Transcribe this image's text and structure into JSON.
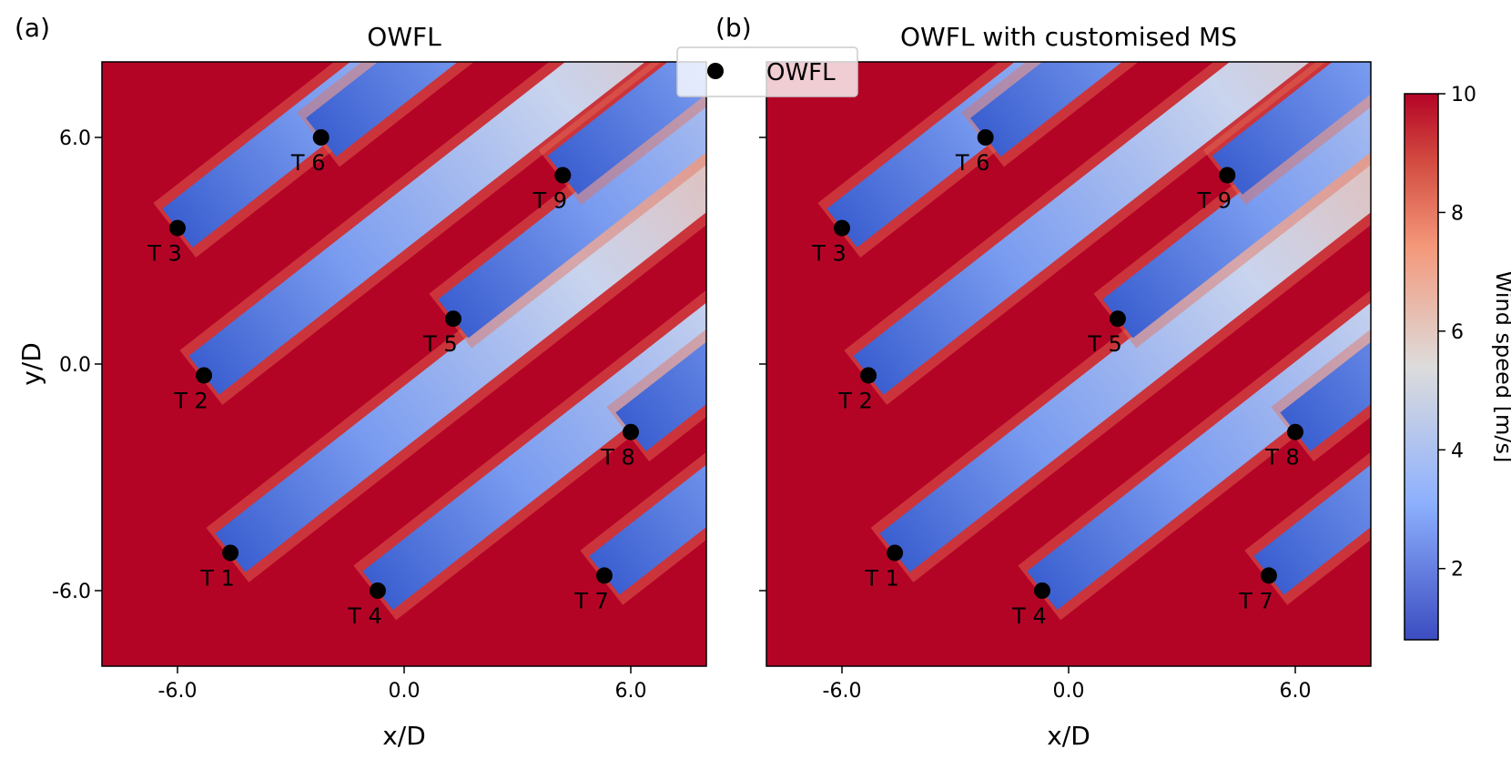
{
  "panels": [
    {
      "tag": "(a)",
      "title": "OWFL",
      "x_ticks": [
        "-6.0",
        "0.0",
        "6.0"
      ],
      "y_ticks": [
        "6.0",
        "0.0",
        "-6.0"
      ],
      "xlabel": "x/D",
      "ylabel": "y/D"
    },
    {
      "tag": "(b)",
      "title": "OWFL with customised MS",
      "x_ticks": [
        "-6.0",
        "0.0",
        "6.0"
      ],
      "xlabel": "x/D"
    }
  ],
  "legend": {
    "label": "OWFL",
    "position": "top-center"
  },
  "colorbar": {
    "label": "Wind speed [m/s]",
    "ticks": [
      "10",
      "8",
      "6",
      "4",
      "2"
    ],
    "tick_values": [
      10,
      8,
      6,
      4,
      2
    ],
    "range": [
      0.8,
      10
    ],
    "colormap": "coolwarm"
  },
  "chart_data": [
    {
      "type": "heatmap",
      "title": "OWFL",
      "xlabel": "x/D",
      "ylabel": "y/D",
      "xlim": [
        -8,
        8
      ],
      "ylim": [
        -8,
        8
      ],
      "grid": false,
      "wind_direction_deg": 38,
      "turbines": [
        {
          "label": "T 1",
          "x": -4.6,
          "y": -5.0
        },
        {
          "label": "T 2",
          "x": -5.3,
          "y": -0.3
        },
        {
          "label": "T 3",
          "x": -6.0,
          "y": 3.6
        },
        {
          "label": "T 4",
          "x": -0.7,
          "y": -6.0
        },
        {
          "label": "T 5",
          "x": 1.3,
          "y": 1.2
        },
        {
          "label": "T 6",
          "x": -2.2,
          "y": 6.0
        },
        {
          "label": "T 7",
          "x": 5.3,
          "y": -5.6
        },
        {
          "label": "T 8",
          "x": 6.0,
          "y": -1.8
        },
        {
          "label": "T 9",
          "x": 4.2,
          "y": 5.0
        }
      ]
    },
    {
      "type": "heatmap",
      "title": "OWFL with customised MS",
      "xlabel": "x/D",
      "ylabel": "",
      "xlim": [
        -8,
        8
      ],
      "ylim": [
        -8,
        8
      ],
      "grid": false,
      "wind_direction_deg": 38,
      "turbines": [
        {
          "label": "T 1",
          "x": -4.6,
          "y": -5.0
        },
        {
          "label": "T 2",
          "x": -5.3,
          "y": -0.3
        },
        {
          "label": "T 3",
          "x": -6.0,
          "y": 3.6
        },
        {
          "label": "T 4",
          "x": -0.7,
          "y": -6.0
        },
        {
          "label": "T 5",
          "x": 1.3,
          "y": 1.2
        },
        {
          "label": "T 6",
          "x": -2.2,
          "y": 6.0
        },
        {
          "label": "T 7",
          "x": 5.3,
          "y": -5.6
        },
        {
          "label": "T 8",
          "x": 6.0,
          "y": -1.8
        },
        {
          "label": "T 9",
          "x": 4.2,
          "y": 5.0
        }
      ]
    }
  ]
}
